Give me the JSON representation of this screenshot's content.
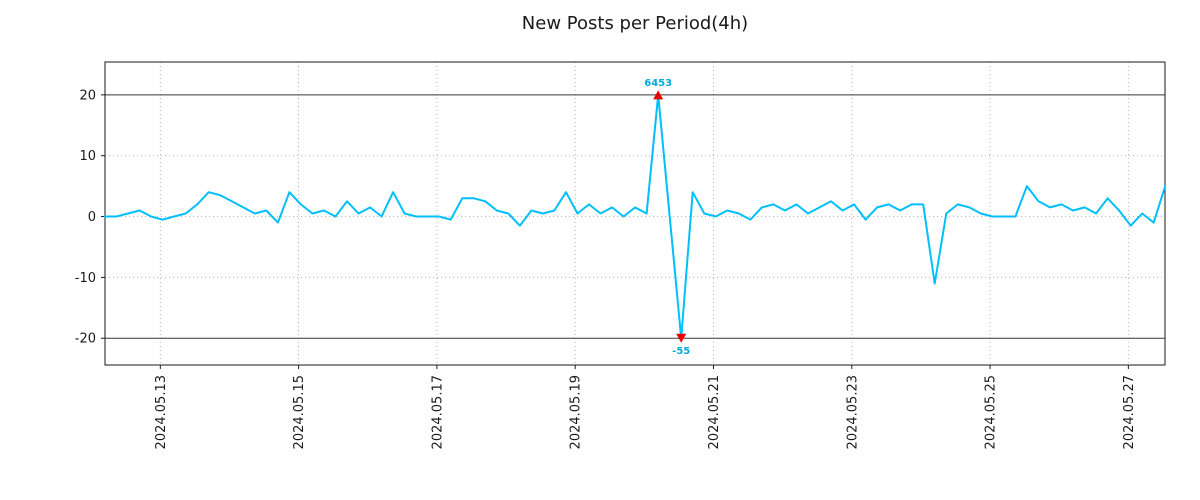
{
  "chart_data": {
    "type": "line",
    "title": "New Posts per Period(4h)",
    "xlabel": "",
    "ylabel": "",
    "period": "4h",
    "line_color": "#00bfff",
    "marker_color": "#e60000",
    "annotation_color": "#00aadd",
    "grid_color": "#b3b3b3",
    "hline_color": "#3a3a3a",
    "frame_color": "#1a1a1a",
    "tick_label_color": "#1a1a1a",
    "grid": true,
    "ylim": [
      -24.4,
      25.4
    ],
    "xlim": [
      0.2,
      15.53
    ],
    "x_start_day": 0.2,
    "x_step_day": 0.1666667,
    "yticks": [
      -20,
      -10,
      0,
      10,
      20
    ],
    "xticks": [
      {
        "day": 1,
        "label": "2024.05.13"
      },
      {
        "day": 3,
        "label": "2024.05.15"
      },
      {
        "day": 5,
        "label": "2024.05.17"
      },
      {
        "day": 7,
        "label": "2024.05.19"
      },
      {
        "day": 9,
        "label": "2024.05.21"
      },
      {
        "day": 11,
        "label": "2024.05.23"
      },
      {
        "day": 13,
        "label": "2024.05.25"
      },
      {
        "day": 15,
        "label": "2024.05.27"
      }
    ],
    "hlines": [
      20,
      -20
    ],
    "values": [
      0,
      0,
      0.5,
      1,
      0,
      -0.5,
      0,
      0.5,
      2,
      4,
      3.5,
      2.5,
      1.5,
      0.5,
      1,
      -1,
      4,
      2,
      0.5,
      1,
      0,
      2.5,
      0.5,
      1.5,
      0,
      4,
      0.5,
      0,
      0,
      0,
      -0.5,
      3,
      3,
      2.5,
      1,
      0.5,
      -1.5,
      1,
      0.5,
      1,
      4,
      0.5,
      2,
      0.5,
      1.5,
      0,
      1.5,
      0.5,
      20,
      0,
      -20,
      4,
      0.5,
      0,
      1,
      0.5,
      -0.5,
      1.5,
      2,
      1,
      2,
      0.5,
      1.5,
      2.5,
      1,
      2,
      -0.5,
      1.5,
      2,
      1,
      2,
      2,
      -11,
      0.5,
      2,
      1.5,
      0.5,
      0,
      0,
      0,
      5,
      2.5,
      1.5,
      2,
      1,
      1.5,
      0.5,
      3,
      1,
      -1.5,
      0.5,
      -1,
      5
    ],
    "annotations": {
      "max": {
        "text": "6453",
        "index": 48,
        "clipped_value": 20,
        "direction": "up"
      },
      "min": {
        "text": "-55",
        "index": 50,
        "clipped_value": -20,
        "direction": "down"
      }
    }
  }
}
